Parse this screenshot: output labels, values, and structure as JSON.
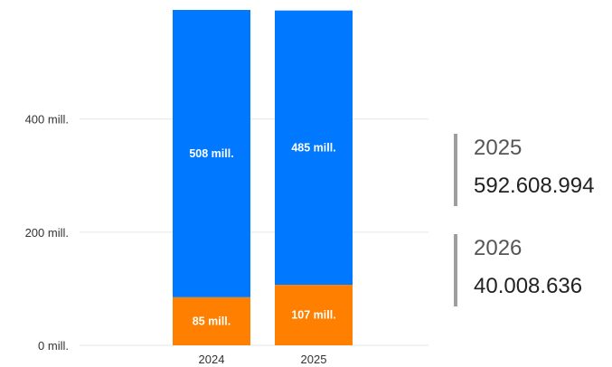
{
  "chart_data": {
    "type": "bar",
    "stacked": true,
    "categories": [
      "2024",
      "2025"
    ],
    "series": [
      {
        "color": "#ff8000",
        "values": [
          85,
          107
        ],
        "labels": [
          "85 mill.",
          "107 mill."
        ]
      },
      {
        "color": "#0078ff",
        "values": [
          508,
          485
        ],
        "labels": [
          "508 mill.",
          "485 mill."
        ]
      }
    ],
    "yticks": [
      {
        "value": 0,
        "label": "0 mill."
      },
      {
        "value": 200,
        "label": "200 mill."
      },
      {
        "value": 400,
        "label": "400 mill."
      }
    ],
    "ylim": [
      0,
      593
    ],
    "grid": true
  },
  "kpis": [
    {
      "year": "2025",
      "amount": "592.608.994"
    },
    {
      "year": "2026",
      "amount": "40.008.636"
    }
  ]
}
